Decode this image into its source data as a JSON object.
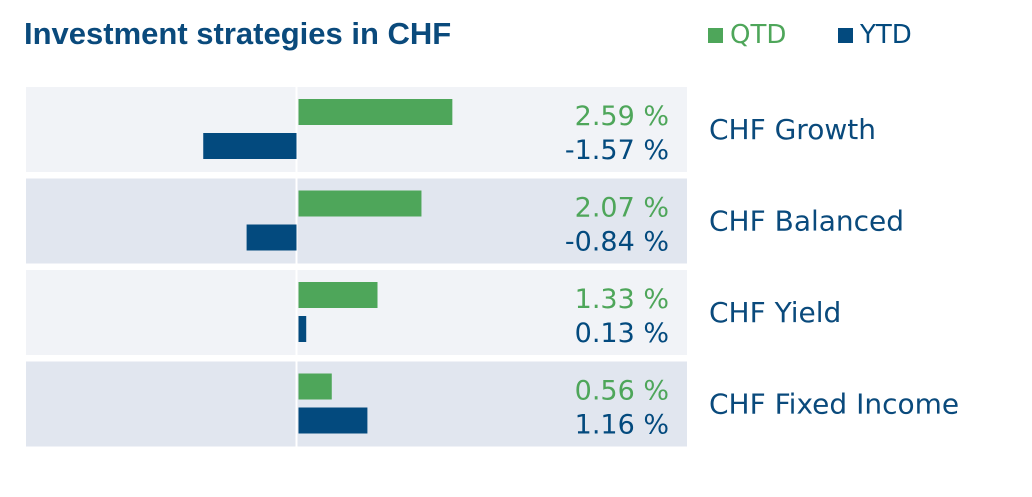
{
  "chart_data": {
    "type": "bar",
    "orientation": "horizontal",
    "title": "Investment strategies in CHF",
    "categories": [
      "CHF Growth",
      "CHF Balanced",
      "CHF Yield",
      "CHF Fixed Income"
    ],
    "series": [
      {
        "name": "QTD",
        "color": "#4ea65a",
        "values": [
          2.59,
          2.07,
          1.33,
          0.56
        ],
        "labels": [
          "2.59 %",
          "2.07 %",
          "1.33 %",
          "0.56 %"
        ]
      },
      {
        "name": "YTD",
        "color": "#034a7e",
        "values": [
          -1.57,
          -0.84,
          0.13,
          1.16
        ],
        "labels": [
          "-1.57 %",
          "-0.84 %",
          "0.13 %",
          "1.16 %"
        ]
      }
    ],
    "legend": {
      "position": "top-right"
    },
    "grid": false,
    "row_colors": [
      "#f1f3f7",
      "#e1e6ef"
    ]
  }
}
